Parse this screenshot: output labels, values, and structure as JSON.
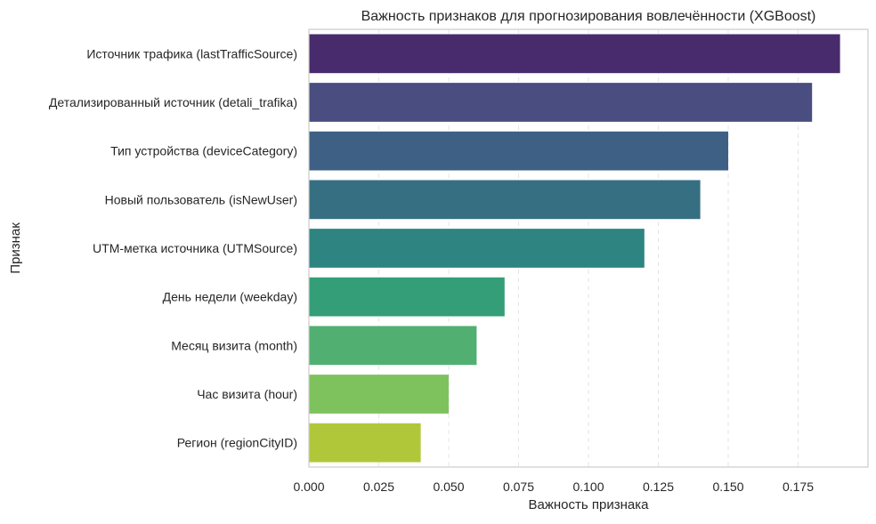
{
  "chart_data": {
    "type": "bar",
    "orientation": "horizontal",
    "title": "Важность признаков для прогнозирования вовлечённости (XGBoost)",
    "xlabel": "Важность признака",
    "ylabel": "Признак",
    "xlim": [
      0,
      0.2
    ],
    "xticks": [
      "0.000",
      "0.025",
      "0.050",
      "0.075",
      "0.100",
      "0.125",
      "0.150",
      "0.175"
    ],
    "grid": "x, dashed",
    "categories": [
      "Источник трафика (lastTrafficSource)",
      "Детализированный источник (detali_trafika)",
      "Тип устройства (deviceCategory)",
      "Новый пользователь (isNewUser)",
      "UTM-метка источника (UTMSource)",
      "День недели (weekday)",
      "Месяц визита (month)",
      "Час визита (hour)",
      "Регион (regionCityID)"
    ],
    "values": [
      0.19,
      0.18,
      0.15,
      0.14,
      0.12,
      0.07,
      0.06,
      0.05,
      0.04
    ],
    "colors": [
      "#482b6c",
      "#4a4d80",
      "#3f6085",
      "#366f82",
      "#2e8480",
      "#339e78",
      "#51b071",
      "#7ec25e",
      "#b0c73a"
    ]
  }
}
